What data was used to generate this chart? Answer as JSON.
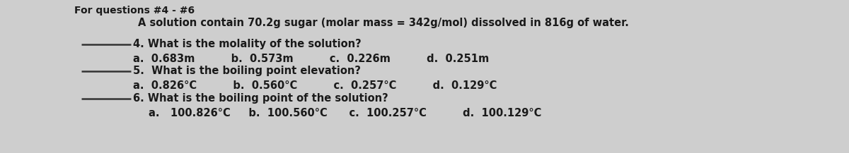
{
  "bg_color": "#cecece",
  "text_color": "#1a1a1a",
  "title": "For questions #4 - #6",
  "subtitle": "A solution contain 70.2g sugar (molar mass = 342g/mol) dissolved in 816g of water.",
  "q4": "4. What is the molality of the solution?",
  "q4_choices": "a.  0.683m          b.  0.573m          c.  0.226m          d.  0.251m",
  "q5": "5.  What is the boiling point elevation?",
  "q5_choices": "a.  0.826°C          b.  0.560°C          c.  0.257°C          d.  0.129°C",
  "q6": "6. What is the boiling point of the solution?",
  "q6_choices": "a.   100.826°C     b.  100.560°C      c.  100.257°C          d.  100.129°C",
  "font_size_title": 10.0,
  "font_size_body": 10.5,
  "line_color": "#333333",
  "line_width": 1.8
}
